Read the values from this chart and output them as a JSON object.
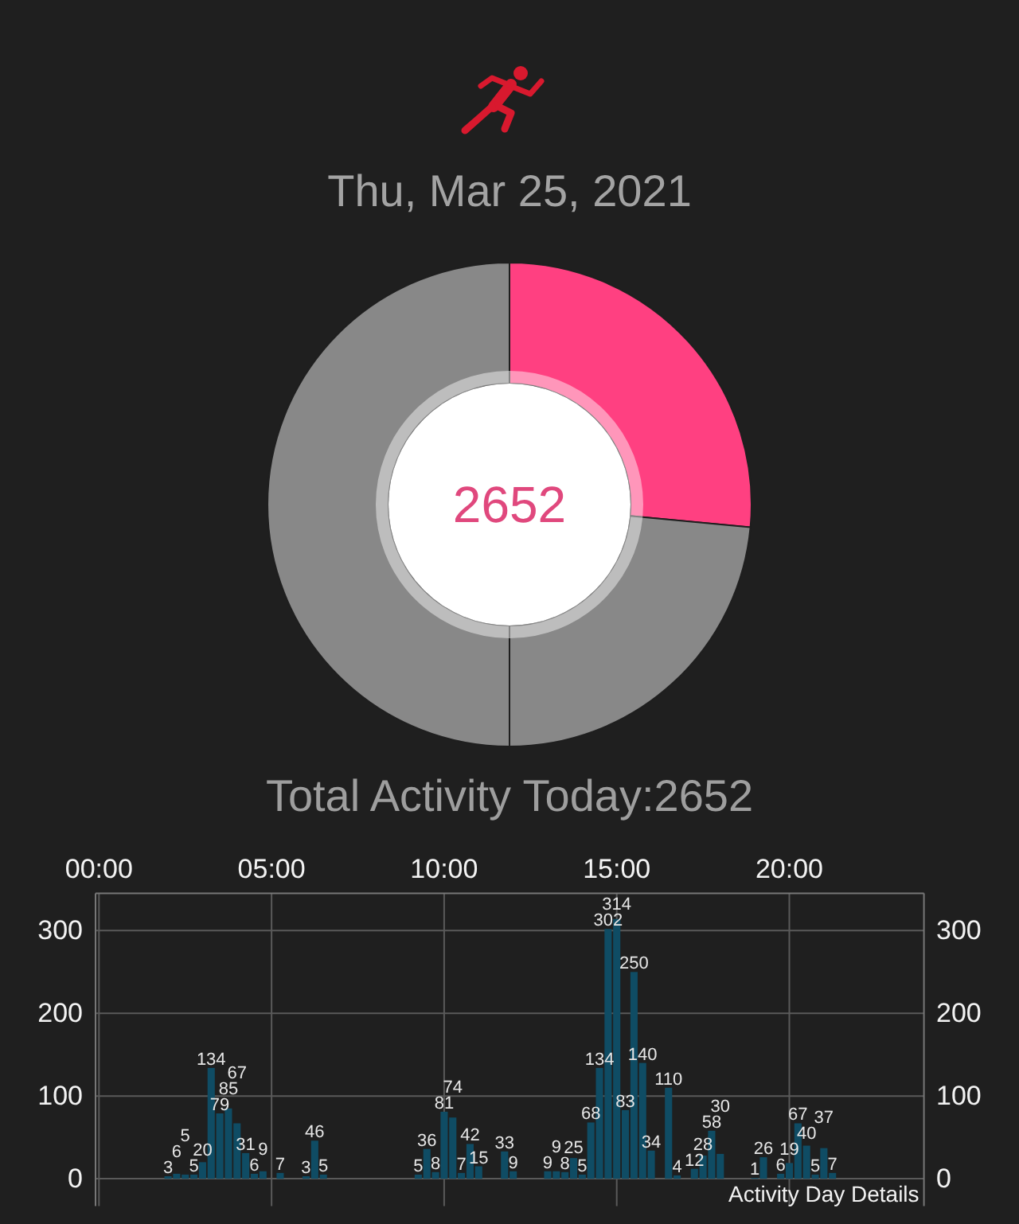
{
  "chart_data": [
    {
      "type": "donut",
      "title": "Thu, Mar 25, 2021",
      "categories": [
        null,
        null,
        null
      ],
      "values": [
        26.5,
        23.5,
        50
      ],
      "colors": [
        "#ff4081",
        "#888888",
        "#888888"
      ],
      "annotations": [
        "2652",
        "Total Activity Today:2652"
      ]
    },
    {
      "type": "bar",
      "x": [
        2,
        2.25,
        2.5,
        2.75,
        3,
        3.25,
        3.5,
        3.75,
        4,
        4.25,
        4.5,
        4.75,
        5.25,
        6,
        6.25,
        6.5,
        9.25,
        9.5,
        9.75,
        10,
        10.25,
        10.5,
        10.75,
        11,
        11.75,
        12,
        13,
        13.25,
        13.5,
        13.75,
        14,
        14.25,
        14.5,
        14.75,
        15,
        15.25,
        15.5,
        15.75,
        16,
        16.5,
        16.75,
        17.25,
        17.5,
        17.75,
        18,
        19,
        19.25,
        19.75,
        20,
        20.25,
        20.5,
        20.75,
        21,
        21.25
      ],
      "values": [
        3,
        6,
        5,
        5,
        20,
        134,
        79,
        85,
        67,
        31,
        6,
        9,
        7,
        3,
        46,
        5,
        5,
        36,
        8,
        81,
        74,
        7,
        42,
        15,
        33,
        9,
        9,
        9,
        8,
        25,
        5,
        68,
        134,
        302,
        314,
        83,
        250,
        140,
        34,
        110,
        4,
        12,
        28,
        58,
        30,
        1,
        26,
        6,
        19,
        67,
        40,
        5,
        37,
        7
      ],
      "color": "#0f4c64",
      "xlim": [
        -0.1,
        23.9
      ],
      "xticks": [
        {
          "value": 0,
          "label": "00:00"
        },
        {
          "value": 5,
          "label": "05:00"
        },
        {
          "value": 10,
          "label": "10:00"
        },
        {
          "value": 15,
          "label": "15:00"
        },
        {
          "value": 20,
          "label": "20:00"
        }
      ],
      "ylim": [
        -33,
        345
      ],
      "yticks": [
        0,
        100,
        200,
        300
      ],
      "y2lim": [
        -33,
        345
      ],
      "y2ticks": [
        0,
        100,
        200,
        300
      ],
      "grid": true,
      "data_labels": true,
      "annotations": [
        "Activity Day Details"
      ]
    }
  ]
}
